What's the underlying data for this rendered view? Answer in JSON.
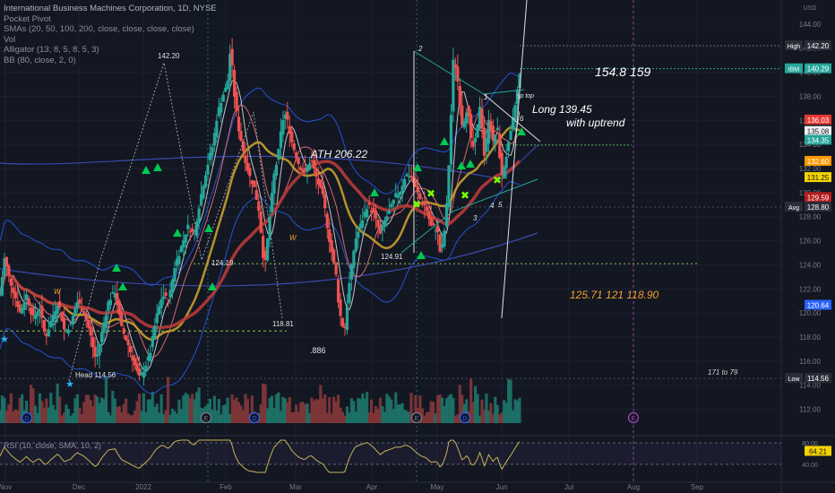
{
  "legend": [
    "International Business Machines Corporation, 1D, NYSE",
    "Pocket Pivot",
    "SMAs (20, 50, 100, 200, close, close, close, close)",
    "Vol",
    "Alligator (13, 8, 5, 8, 5, 3)",
    "BB (80, close, 2, 0)"
  ],
  "rsi_legend": "RSI (10, close, SMA, 10, 2)",
  "annotations": {
    "ath": "ATH 206.22",
    "target_high": "154.8  159",
    "long": "Long 139.45",
    "uptrend": "with uptrend",
    "targets_low": "125.71  121  118.90",
    "r171": "171 to 79",
    "fib886": ".886",
    "head": "Head 114.56",
    "lbl_142": "142.20",
    "lbl_124_19": "124.19",
    "lbl_118_81": "118.81",
    "lbl_124_91": "124.91",
    "sp_top": "sp top",
    "w1": "W",
    "w2": "W",
    "n1": "1",
    "n2": "2",
    "n3": "3",
    "n4": "4",
    "n5": "5",
    "n6": "6"
  },
  "colors": {
    "background": "#131722",
    "up": "#26a69a",
    "down": "#ef5350",
    "volume_up": "#1f7a6f",
    "volume_down": "#8a3a3a",
    "sma20": "#f0f0f0",
    "sma50": "#c8a02c",
    "sma100": "#a0a030",
    "sma200": "#b83a3a",
    "bb": "#2962ff",
    "rsi": "#c9b25a",
    "pivot": "#00c853",
    "star": "#29b6f6"
  },
  "chart_data": {
    "type": "candlestick",
    "symbol": "IBM",
    "interval": "1D",
    "exchange": "NYSE",
    "y_axis": {
      "label": "USD",
      "range": [
        111,
        146
      ],
      "ticks": [
        112,
        114,
        116,
        118,
        120,
        122,
        124,
        126,
        128,
        130,
        132,
        134,
        136,
        138,
        140,
        142,
        144
      ]
    },
    "x_axis": {
      "ticks": [
        "Nov",
        "Dec",
        "2022",
        "Feb",
        "Mar",
        "Apr",
        "May",
        "Jun",
        "Jul",
        "Aug",
        "Sep"
      ]
    },
    "price_labels": [
      {
        "text": "High",
        "value": 142.2,
        "price": "142.20",
        "color": "#2a2e39"
      },
      {
        "text": "IBM",
        "value": 140.29,
        "price": "140.29",
        "color": "#26a69a"
      },
      {
        "text": "",
        "value": 136.03,
        "price": "136.03",
        "color": "#e53935"
      },
      {
        "text": "",
        "value": 135.08,
        "price": "135.08",
        "color": "#f0f0f0"
      },
      {
        "text": "",
        "value": 134.35,
        "price": "134.35",
        "color": "#26a69a"
      },
      {
        "text": "",
        "value": 132.6,
        "price": "132.60",
        "color": "#ff9800"
      },
      {
        "text": "",
        "value": 131.25,
        "price": "131.25",
        "color": "#f6d400"
      },
      {
        "text": "",
        "value": 129.59,
        "price": "129.59",
        "color": "#b71c1c"
      },
      {
        "text": "Avg",
        "value": 128.8,
        "price": "128.80",
        "color": "#2a2e39"
      },
      {
        "text": "",
        "value": 120.64,
        "price": "120.64",
        "color": "#2962ff"
      },
      {
        "text": "Low",
        "value": 114.56,
        "price": "114.56",
        "color": "#2a2e39"
      }
    ],
    "close_path": [
      [
        118,
        121.5
      ],
      [
        125,
        124.5
      ],
      [
        135,
        122.5
      ],
      [
        150,
        120
      ],
      [
        160,
        121.5
      ],
      [
        170,
        119.5
      ],
      [
        180,
        120.5
      ],
      [
        190,
        118
      ],
      [
        200,
        119.5
      ],
      [
        210,
        121
      ],
      [
        220,
        118.5
      ],
      [
        230,
        119
      ],
      [
        240,
        121
      ],
      [
        250,
        120.2
      ],
      [
        260,
        118.4
      ],
      [
        270,
        116
      ],
      [
        280,
        118.6
      ],
      [
        290,
        121
      ],
      [
        300,
        121.8
      ],
      [
        310,
        118.8
      ],
      [
        320,
        117.5
      ],
      [
        330,
        115.9
      ],
      [
        338,
        114.56
      ],
      [
        345,
        115.2
      ],
      [
        355,
        116.5
      ],
      [
        365,
        119.5
      ],
      [
        375,
        121.5
      ],
      [
        385,
        121
      ],
      [
        395,
        124
      ],
      [
        405,
        125.5
      ],
      [
        415,
        127.2
      ],
      [
        425,
        126.5
      ],
      [
        435,
        129.5
      ],
      [
        445,
        132
      ],
      [
        455,
        134
      ],
      [
        462,
        136.5
      ],
      [
        470,
        138
      ],
      [
        478,
        139
      ],
      [
        483,
        142.2
      ],
      [
        488,
        138.5
      ],
      [
        495,
        135.5
      ],
      [
        505,
        133
      ],
      [
        512,
        131.5
      ],
      [
        520,
        130.5
      ],
      [
        528,
        128.5
      ],
      [
        535,
        124.5
      ],
      [
        538,
        124.2
      ],
      [
        545,
        128
      ],
      [
        552,
        131.5
      ],
      [
        558,
        133
      ],
      [
        565,
        136
      ],
      [
        570,
        136.5
      ],
      [
        575,
        135.5
      ],
      [
        580,
        134.2
      ],
      [
        590,
        132.5
      ],
      [
        600,
        131.5
      ],
      [
        610,
        132.8
      ],
      [
        620,
        131
      ],
      [
        630,
        129.5
      ],
      [
        638,
        126.5
      ],
      [
        645,
        124.5
      ],
      [
        650,
        123.1
      ],
      [
        655,
        120.2
      ],
      [
        660,
        119
      ],
      [
        664,
        118.81
      ],
      [
        670,
        122
      ],
      [
        680,
        126
      ],
      [
        690,
        127.5
      ],
      [
        700,
        129
      ],
      [
        710,
        128.2
      ],
      [
        720,
        126.5
      ],
      [
        728,
        127.8
      ],
      [
        735,
        128.5
      ],
      [
        745,
        129.8
      ],
      [
        752,
        130.2
      ],
      [
        760,
        131.5
      ],
      [
        768,
        131.4
      ],
      [
        775,
        130.5
      ],
      [
        785,
        129.2
      ],
      [
        792,
        128.8
      ],
      [
        800,
        127.2
      ],
      [
        810,
        127
      ],
      [
        815,
        124.91
      ],
      [
        820,
        126
      ],
      [
        826,
        129.5
      ],
      [
        831,
        135.2
      ],
      [
        836,
        141.5
      ],
      [
        842,
        139.5
      ],
      [
        850,
        135.5
      ],
      [
        858,
        137.2
      ],
      [
        865,
        133.5
      ],
      [
        872,
        134.5
      ],
      [
        878,
        137.5
      ],
      [
        885,
        132.8
      ],
      [
        892,
        136.5
      ],
      [
        898,
        134
      ],
      [
        905,
        135.5
      ],
      [
        912,
        131.2
      ],
      [
        920,
        133.2
      ],
      [
        928,
        135.3
      ],
      [
        935,
        137.8
      ],
      [
        942,
        140.29
      ]
    ],
    "rsi": {
      "levels": [
        80,
        40
      ],
      "ticks": [
        "80.00",
        "40.00"
      ],
      "value": 64.21,
      "value_label": "64.21"
    }
  }
}
